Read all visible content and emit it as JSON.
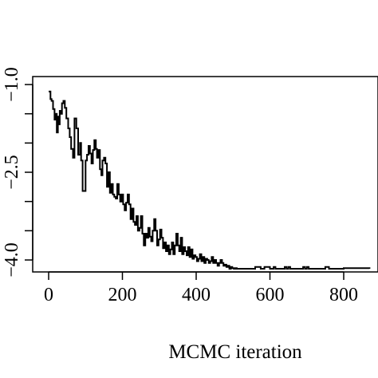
{
  "chart_data": {
    "type": "line",
    "step": true,
    "title": "",
    "xlabel": "MCMC iteration",
    "ylabel": "",
    "xlim": [
      -20,
      880
    ],
    "ylim": [
      -4.2,
      -0.9
    ],
    "x_ticks": [
      0,
      200,
      400,
      600,
      800
    ],
    "x_tick_labels": [
      "0",
      "200",
      "400",
      "600",
      "800"
    ],
    "y_ticks": [
      -1.0,
      -2.5,
      -4.0
    ],
    "y_tick_labels": [
      "−1.0",
      "−2.5",
      "−4.0"
    ],
    "y_minor_ticks": [
      -1.0,
      -1.5,
      -2.0,
      -2.5,
      -3.0,
      -3.5,
      -4.0
    ],
    "grid": false,
    "legend": "none",
    "line_color": "#000000",
    "series": [
      {
        "x": [
          0,
          5,
          8,
          12,
          16,
          19,
          22,
          25,
          27,
          30,
          34,
          36,
          40,
          44,
          48,
          53,
          57,
          61,
          66,
          70,
          75,
          80,
          85,
          88,
          92,
          96,
          100,
          104,
          108,
          112,
          116,
          120,
          124,
          128,
          131,
          135,
          139,
          143,
          146,
          150,
          154,
          158,
          162,
          166,
          170,
          174,
          178,
          182,
          186,
          190,
          194,
          198,
          202,
          206,
          210,
          214,
          218,
          222,
          226,
          230,
          234,
          238,
          242,
          246,
          250,
          254,
          258,
          262,
          266,
          270,
          274,
          278,
          282,
          286,
          290,
          294,
          298,
          302,
          306,
          310,
          314,
          318,
          322,
          326,
          330,
          334,
          338,
          342,
          346,
          350,
          354,
          358,
          362,
          366,
          370,
          374,
          378,
          382,
          386,
          390,
          394,
          398,
          402,
          406,
          410,
          414,
          418,
          422,
          426,
          430,
          434,
          438,
          442,
          446,
          450,
          454,
          458,
          462,
          466,
          470,
          474,
          478,
          482,
          486,
          490,
          494,
          498,
          502,
          506,
          510,
          520,
          560,
          575,
          585,
          600,
          610,
          615,
          640,
          645,
          650,
          655,
          690,
          695,
          700,
          705,
          750,
          760,
          800,
          870
        ],
        "y": [
          -1.12,
          -1.25,
          -1.28,
          -1.42,
          -1.6,
          -1.5,
          -1.82,
          -1.55,
          -1.68,
          -1.45,
          -1.5,
          -1.32,
          -1.28,
          -1.4,
          -1.58,
          -1.75,
          -1.9,
          -2.1,
          -2.25,
          -1.58,
          -1.75,
          -2.2,
          -2.0,
          -2.3,
          -2.82,
          -2.82,
          -2.3,
          -2.2,
          -2.05,
          -2.18,
          -2.35,
          -2.12,
          -1.95,
          -2.1,
          -2.25,
          -2.12,
          -2.45,
          -2.55,
          -2.3,
          -2.25,
          -2.35,
          -2.75,
          -2.5,
          -2.85,
          -2.7,
          -2.88,
          -2.92,
          -2.95,
          -2.7,
          -2.88,
          -3.0,
          -2.88,
          -3.05,
          -3.15,
          -3.02,
          -2.88,
          -3.05,
          -3.3,
          -3.12,
          -3.35,
          -3.4,
          -3.25,
          -3.5,
          -3.45,
          -3.25,
          -3.55,
          -3.75,
          -3.55,
          -3.62,
          -3.45,
          -3.6,
          -3.68,
          -3.5,
          -3.3,
          -3.5,
          -3.75,
          -3.65,
          -3.48,
          -3.62,
          -3.8,
          -3.7,
          -3.85,
          -3.75,
          -3.9,
          -3.82,
          -3.7,
          -3.9,
          -3.75,
          -3.55,
          -3.75,
          -3.85,
          -3.62,
          -3.9,
          -3.78,
          -3.85,
          -3.92,
          -3.78,
          -3.95,
          -3.82,
          -3.98,
          -3.92,
          -3.95,
          -4.02,
          -3.98,
          -3.9,
          -4.02,
          -3.95,
          -4.05,
          -3.98,
          -4.0,
          -4.05,
          -4.02,
          -3.95,
          -4.05,
          -4.0,
          -4.05,
          -4.1,
          -4.05,
          -4.0,
          -4.05,
          -4.1,
          -4.08,
          -4.12,
          -4.1,
          -4.15,
          -4.12,
          -4.14,
          -4.15,
          -4.14,
          -4.15,
          -4.15,
          -4.12,
          -4.15,
          -4.12,
          -4.15,
          -4.12,
          -4.15,
          -4.12,
          -4.15,
          -4.12,
          -4.15,
          -4.12,
          -4.15,
          -4.12,
          -4.15,
          -4.12,
          -4.15,
          -4.14,
          -4.15
        ]
      }
    ]
  }
}
